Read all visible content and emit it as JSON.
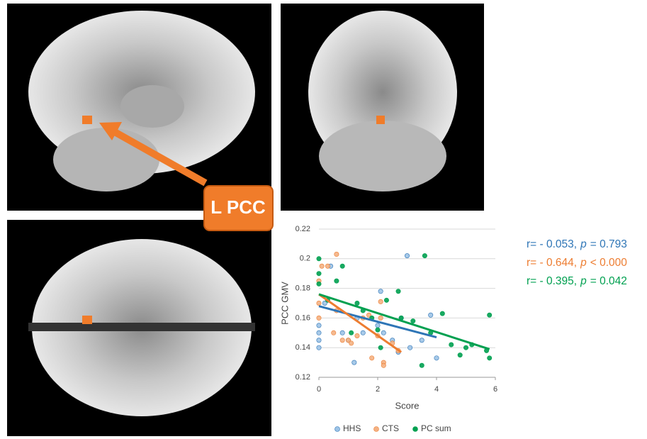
{
  "figure_label": "L PCC",
  "chart_data": {
    "type": "scatter",
    "x_label": "Score",
    "y_label": "PCC GMV",
    "xlim": [
      0,
      6
    ],
    "xticks": [
      0,
      2,
      4,
      6
    ],
    "ylim": [
      0.12,
      0.22
    ],
    "yticks": [
      0.12,
      0.14,
      0.16,
      0.18,
      0.2,
      0.22
    ],
    "grid": true,
    "legend": "bottom",
    "series": [
      {
        "name": "HHS",
        "color": "#2e75b6",
        "marker_color": "#9dc3e6",
        "x": [
          0,
          0,
          0,
          0,
          0.2,
          0.4,
          0.8,
          1,
          1.2,
          1.3,
          1.5,
          2,
          2.1,
          2.2,
          2.5,
          2.8,
          3,
          3.1,
          3.5,
          3.8,
          4,
          2.7
        ],
        "values": [
          0.14,
          0.145,
          0.15,
          0.155,
          0.17,
          0.195,
          0.15,
          0.145,
          0.13,
          0.16,
          0.15,
          0.155,
          0.178,
          0.15,
          0.145,
          0.16,
          0.202,
          0.14,
          0.145,
          0.162,
          0.133,
          0.137
        ],
        "trendline": {
          "x": [
            0,
            4
          ],
          "values": [
            0.168,
            0.147
          ]
        },
        "stats": {
          "r": "r= - 0.053,",
          "p_symbol": "p",
          "p_value": "= 0.793"
        }
      },
      {
        "name": "CTS",
        "color": "#ed7d31",
        "marker_color": "#f4b183",
        "x": [
          0,
          0,
          0,
          0.1,
          0.3,
          0.5,
          0.6,
          0.6,
          0.8,
          1,
          1.1,
          1.3,
          1.5,
          1.7,
          1.8,
          2,
          2.1,
          2.1,
          2.2,
          2.5,
          2.7,
          2.2
        ],
        "values": [
          0.185,
          0.17,
          0.16,
          0.195,
          0.195,
          0.15,
          0.203,
          0.165,
          0.145,
          0.145,
          0.143,
          0.148,
          0.16,
          0.162,
          0.133,
          0.148,
          0.16,
          0.171,
          0.13,
          0.143,
          0.138,
          0.128
        ],
        "trendline": {
          "x": [
            0,
            2.8
          ],
          "values": [
            0.176,
            0.137
          ]
        },
        "stats": {
          "r": "r= - 0.644,",
          "p_symbol": "p",
          "p_value": "< 0.000"
        }
      },
      {
        "name": "PC sum",
        "color": "#00a050",
        "marker_color": "#00a050",
        "x": [
          0,
          0,
          0,
          0.3,
          0.6,
          0.8,
          1.1,
          1.3,
          1.5,
          1.8,
          2,
          2.1,
          2.3,
          2.7,
          2.8,
          3.2,
          3.5,
          3.6,
          3.8,
          4.2,
          4.5,
          5,
          5.2,
          5.7,
          5.8,
          5.8,
          4.8
        ],
        "values": [
          0.2,
          0.19,
          0.183,
          0.172,
          0.185,
          0.195,
          0.15,
          0.17,
          0.165,
          0.16,
          0.152,
          0.14,
          0.172,
          0.178,
          0.16,
          0.158,
          0.128,
          0.202,
          0.15,
          0.163,
          0.142,
          0.14,
          0.142,
          0.138,
          0.162,
          0.133,
          0.135
        ],
        "trendline": {
          "x": [
            0,
            5.8
          ],
          "values": [
            0.176,
            0.139
          ]
        },
        "stats": {
          "r": "r= - 0.395,",
          "p_symbol": "p",
          "p_value": "= 0.042"
        }
      }
    ]
  }
}
